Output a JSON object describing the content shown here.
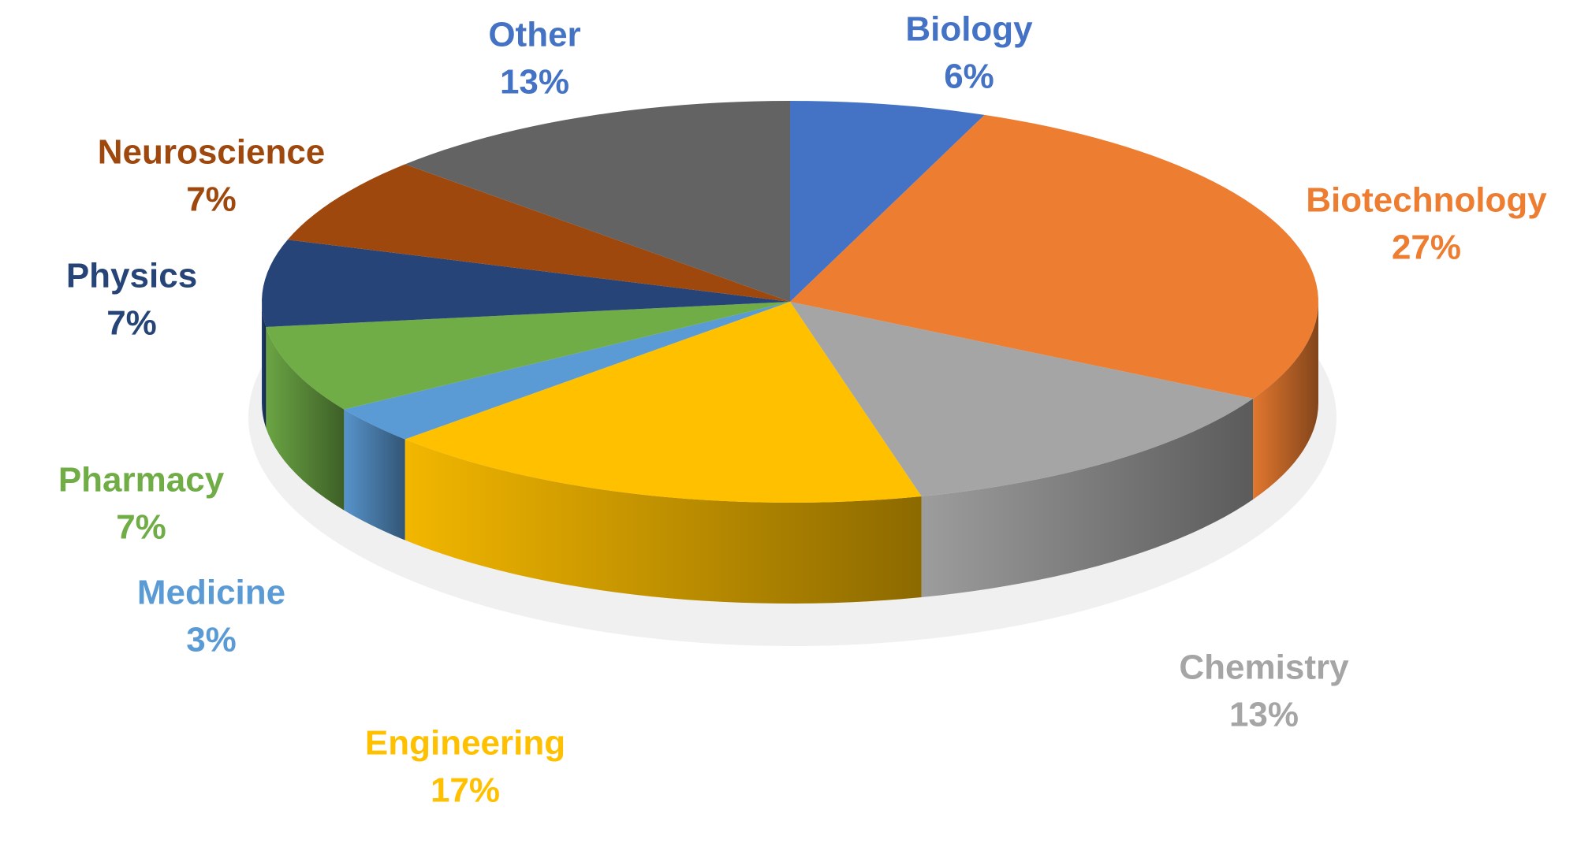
{
  "chart_data": {
    "type": "pie3d",
    "categories": [
      "Biology",
      "Biotechnology",
      "Chemistry",
      "Engineering",
      "Medicine",
      "Pharmacy",
      "Physics",
      "Neuroscience",
      "Other"
    ],
    "values": [
      6,
      27,
      13,
      17,
      3,
      7,
      7,
      7,
      13
    ],
    "value_labels": [
      "6%",
      "27%",
      "13%",
      "17%",
      "3%",
      "7%",
      "7%",
      "7%",
      "13%"
    ],
    "colors": [
      "#4472c4",
      "#ed7d31",
      "#a5a5a5",
      "#ffc000",
      "#5b9bd5",
      "#70ad47",
      "#264478",
      "#9e480e",
      "#636363"
    ],
    "label_colors": [
      "#4472c4",
      "#ed7d31",
      "#a5a5a5",
      "#ffc000",
      "#5b9bd5",
      "#70ad47",
      "#264478",
      "#9e480e",
      "#4472c4"
    ]
  }
}
